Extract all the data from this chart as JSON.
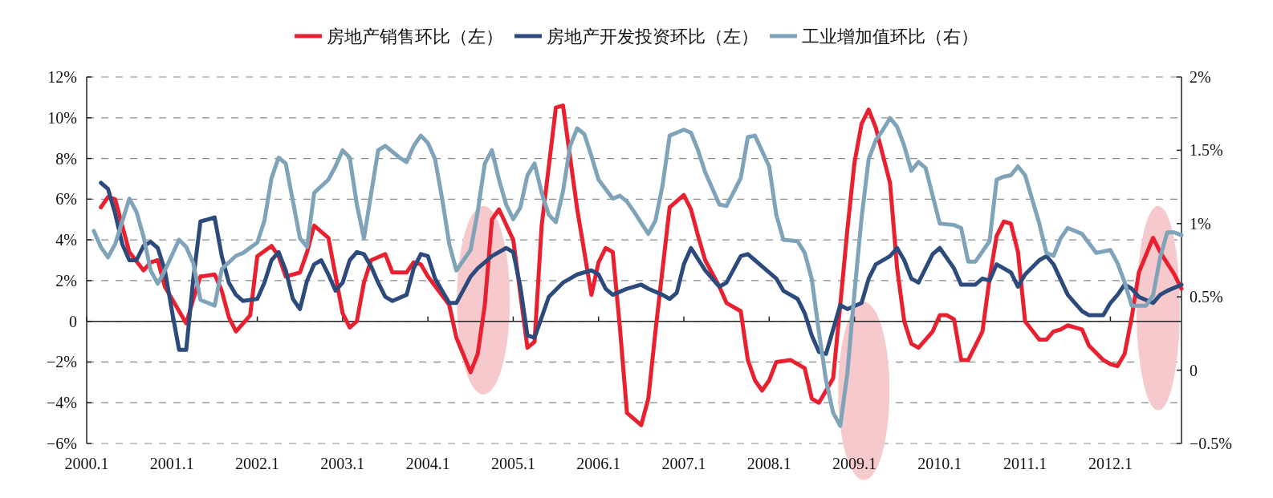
{
  "chart_data": {
    "type": "line",
    "legend": "top",
    "grid": "y",
    "marker": "none",
    "line_style": "solid",
    "xlim": [
      "2000-01",
      "2012-11"
    ],
    "xticks": [
      {
        "value": "2000-01",
        "label": "2000.1"
      },
      {
        "value": "2001-01",
        "label": "2001.1"
      },
      {
        "value": "2002-01",
        "label": "2002.1"
      },
      {
        "value": "2003-01",
        "label": "2003.1"
      },
      {
        "value": "2004-01",
        "label": "2004.1"
      },
      {
        "value": "2005-01",
        "label": "2005.1"
      },
      {
        "value": "2006-01",
        "label": "2006.1"
      },
      {
        "value": "2007-01",
        "label": "2007.1"
      },
      {
        "value": "2008-01",
        "label": "2008.1"
      },
      {
        "value": "2009-01",
        "label": "2009.1"
      },
      {
        "value": "2010-01",
        "label": "2010.1"
      },
      {
        "value": "2011-01",
        "label": "2011.1"
      },
      {
        "value": "2012-01",
        "label": "2012.1"
      }
    ],
    "ylim": [
      -6,
      12
    ],
    "yticks": [
      {
        "value": -6,
        "label": "−6%"
      },
      {
        "value": -4,
        "label": "−4%"
      },
      {
        "value": -2,
        "label": "−2%"
      },
      0,
      {
        "value": 2,
        "label": "2%"
      },
      {
        "value": 4,
        "label": "4%"
      },
      {
        "value": 6,
        "label": "6%"
      },
      {
        "value": 8,
        "label": "8%"
      },
      {
        "value": 10,
        "label": "10%"
      },
      {
        "value": 12,
        "label": "12%"
      }
    ],
    "y2lim": [
      -0.5,
      2
    ],
    "y2ticks": [
      {
        "value": -0.5,
        "label": "−0.5%"
      },
      0,
      {
        "value": 0.5,
        "label": "0.5%"
      },
      {
        "value": 1,
        "label": "1%"
      },
      {
        "value": 1.5,
        "label": "1.5%"
      },
      {
        "value": 2,
        "label": "2%"
      }
    ],
    "series": [
      {
        "name": "房地产销售环比（左）",
        "color": "#e8202f",
        "x": [
          "2000-03",
          "2000-04",
          "2000-05",
          "2000-07",
          "2000-09",
          "2000-10",
          "2000-11",
          "2000-12",
          "2001-02",
          "2001-03",
          "2001-04",
          "2001-05",
          "2001-07",
          "2001-08",
          "2001-09",
          "2001-10",
          "2001-12",
          "2002-01",
          "2002-03",
          "2002-04",
          "2002-05",
          "2002-07",
          "2002-08",
          "2002-09",
          "2002-11",
          "2003-01",
          "2003-02",
          "2003-03",
          "2003-04",
          "2003-05",
          "2003-07",
          "2003-08",
          "2003-10",
          "2003-11",
          "2003-12",
          "2004-01",
          "2004-04",
          "2004-05",
          "2004-07",
          "2004-08",
          "2004-09",
          "2004-10",
          "2004-11",
          "2005-01",
          "2005-03",
          "2005-04",
          "2005-05",
          "2005-07",
          "2005-08",
          "2005-10",
          "2005-12",
          "2006-01",
          "2006-02",
          "2006-03",
          "2006-04",
          "2006-05",
          "2006-07",
          "2006-08",
          "2006-09",
          "2006-11",
          "2007-01",
          "2007-02",
          "2007-03",
          "2007-04",
          "2007-06",
          "2007-07",
          "2007-09",
          "2007-10",
          "2007-11",
          "2007-12",
          "2008-01",
          "2008-02",
          "2008-04",
          "2008-06",
          "2008-07",
          "2008-08",
          "2008-10",
          "2008-11",
          "2008-12",
          "2009-01",
          "2009-02",
          "2009-03",
          "2009-04",
          "2009-06",
          "2009-07",
          "2009-08",
          "2009-09",
          "2009-10",
          "2009-12",
          "2010-01",
          "2010-02",
          "2010-03",
          "2010-04",
          "2010-05",
          "2010-07",
          "2010-08",
          "2010-09",
          "2010-10",
          "2010-11",
          "2010-12",
          "2011-01",
          "2011-03",
          "2011-04",
          "2011-05",
          "2011-06",
          "2011-07",
          "2011-09",
          "2011-10",
          "2011-12",
          "2012-01",
          "2012-02",
          "2012-03",
          "2012-04",
          "2012-05",
          "2012-07",
          "2012-08",
          "2012-10",
          "2012-11"
        ],
        "values": [
          5.6,
          6.1,
          6.0,
          3.4,
          2.5,
          2.9,
          3.0,
          1.7,
          0.5,
          -0.1,
          1.1,
          2.2,
          2.3,
          1.5,
          0.2,
          -0.5,
          0.3,
          3.2,
          3.7,
          3.2,
          2.2,
          2.4,
          3.4,
          4.7,
          4.1,
          0.4,
          -0.3,
          0,
          1.9,
          3.0,
          3.3,
          2.4,
          2.4,
          2.9,
          2.8,
          2.2,
          0.8,
          -0.8,
          -2.5,
          -1.6,
          0.8,
          5.0,
          5.5,
          4.0,
          -1.3,
          -1.0,
          4.7,
          10.5,
          10.6,
          5.5,
          1.3,
          2.9,
          3.6,
          3.4,
          -0.3,
          -4.5,
          -5.1,
          -3.8,
          -0.5,
          5.6,
          6.2,
          5.5,
          4.2,
          3.0,
          1.7,
          0.9,
          0.5,
          -1.9,
          -2.9,
          -3.4,
          -2.9,
          -2.0,
          -1.9,
          -2.3,
          -3.8,
          -4.0,
          -2.8,
          0.8,
          4.5,
          7.8,
          9.7,
          10.4,
          9.5,
          6.8,
          2.6,
          0,
          -1.1,
          -1.3,
          -0.5,
          0.3,
          0.3,
          0.1,
          -1.9,
          -1.9,
          -0.5,
          2.1,
          4.2,
          4.9,
          4.8,
          3.4,
          0,
          -0.9,
          -0.9,
          -0.5,
          -0.4,
          -0.2,
          -0.4,
          -1.2,
          -1.9,
          -2.1,
          -2.2,
          -1.6,
          0.2,
          2.4,
          4.1,
          3.4,
          2.3,
          1.6
        ]
      },
      {
        "name": "房地产开发投资环比（左）",
        "color": "#2c4a7c",
        "x": [
          "2000-03",
          "2000-04",
          "2000-05",
          "2000-06",
          "2000-07",
          "2000-08",
          "2000-09",
          "2000-10",
          "2000-11",
          "2000-12",
          "2001-01",
          "2001-02",
          "2001-03",
          "2001-04",
          "2001-05",
          "2001-07",
          "2001-08",
          "2001-09",
          "2001-10",
          "2001-11",
          "2002-01",
          "2002-02",
          "2002-03",
          "2002-04",
          "2002-05",
          "2002-06",
          "2002-07",
          "2002-08",
          "2002-09",
          "2002-10",
          "2002-11",
          "2002-12",
          "2003-01",
          "2003-02",
          "2003-03",
          "2003-04",
          "2003-05",
          "2003-06",
          "2003-07",
          "2003-08",
          "2003-10",
          "2003-11",
          "2003-12",
          "2004-01",
          "2004-02",
          "2004-04",
          "2004-05",
          "2004-07",
          "2004-08",
          "2004-09",
          "2004-10",
          "2004-12",
          "2005-01",
          "2005-02",
          "2005-03",
          "2005-04",
          "2005-06",
          "2005-08",
          "2005-09",
          "2005-10",
          "2005-12",
          "2006-01",
          "2006-02",
          "2006-03",
          "2006-05",
          "2006-07",
          "2006-08",
          "2006-10",
          "2006-11",
          "2006-12",
          "2007-01",
          "2007-02",
          "2007-04",
          "2007-06",
          "2007-07",
          "2007-09",
          "2007-10",
          "2007-11",
          "2007-12",
          "2008-02",
          "2008-03",
          "2008-05",
          "2008-06",
          "2008-07",
          "2008-08",
          "2008-09",
          "2008-10",
          "2008-11",
          "2008-12",
          "2009-02",
          "2009-03",
          "2009-04",
          "2009-06",
          "2009-07",
          "2009-08",
          "2009-09",
          "2009-10",
          "2009-12",
          "2010-01",
          "2010-03",
          "2010-04",
          "2010-06",
          "2010-07",
          "2010-08",
          "2010-09",
          "2010-11",
          "2010-12",
          "2011-01",
          "2011-03",
          "2011-04",
          "2011-05",
          "2011-07",
          "2011-08",
          "2011-09",
          "2011-10",
          "2011-12",
          "2012-01",
          "2012-02",
          "2012-03",
          "2012-04",
          "2012-05",
          "2012-07",
          "2012-08",
          "2012-09",
          "2012-11"
        ],
        "values": [
          6.8,
          6.5,
          5.3,
          3.8,
          3.0,
          3.0,
          3.7,
          3.9,
          3.6,
          2.5,
          0.5,
          -1.4,
          -1.4,
          2.1,
          4.9,
          5.1,
          3.2,
          1.9,
          1.3,
          1.0,
          1.1,
          1.9,
          3.0,
          3.4,
          2.5,
          1.1,
          0.6,
          2.0,
          2.8,
          3.0,
          2.3,
          1.5,
          1.9,
          3.0,
          3.4,
          3.3,
          2.7,
          1.9,
          1.2,
          1.0,
          1.3,
          2.6,
          3.3,
          3.2,
          2.1,
          0.9,
          0.9,
          2.2,
          2.6,
          2.9,
          3.2,
          3.6,
          3.4,
          1.7,
          -0.7,
          -0.8,
          1.2,
          1.9,
          2.1,
          2.3,
          2.5,
          2.3,
          1.6,
          1.3,
          1.6,
          1.8,
          1.6,
          1.3,
          1.1,
          1.4,
          2.8,
          3.6,
          2.5,
          1.7,
          1.9,
          3.2,
          3.3,
          3.0,
          2.7,
          2.1,
          1.5,
          1.1,
          0.4,
          -0.7,
          -1.5,
          -1.6,
          -0.4,
          0.8,
          0.6,
          0.9,
          2.1,
          2.8,
          3.2,
          3.6,
          3.0,
          2.1,
          1.9,
          3.3,
          3.6,
          2.6,
          1.8,
          1.8,
          2.1,
          2.0,
          2.8,
          2.4,
          1.7,
          2.3,
          3.0,
          3.2,
          2.8,
          1.3,
          0.9,
          0.5,
          0.3,
          0.3,
          0.9,
          1.3,
          1.8,
          1.6,
          1.2,
          0.9,
          1.3,
          1.5,
          1.8
        ]
      },
      {
        "name": "工业增加值环比（右）",
        "color": "#7fa3b8",
        "axis": "y2",
        "x": [
          "2000-02",
          "2000-03",
          "2000-04",
          "2000-05",
          "2000-07",
          "2000-08",
          "2000-09",
          "2000-10",
          "2000-11",
          "2000-12",
          "2001-02",
          "2001-03",
          "2001-04",
          "2001-05",
          "2001-07",
          "2001-08",
          "2001-10",
          "2001-11",
          "2002-01",
          "2002-02",
          "2002-03",
          "2002-04",
          "2002-05",
          "2002-07",
          "2002-08",
          "2002-09",
          "2002-11",
          "2002-12",
          "2003-01",
          "2003-02",
          "2003-03",
          "2003-04",
          "2003-06",
          "2003-07",
          "2003-09",
          "2003-10",
          "2003-11",
          "2003-12",
          "2004-01",
          "2004-02",
          "2004-03",
          "2004-04",
          "2004-05",
          "2004-07",
          "2004-08",
          "2004-09",
          "2004-10",
          "2004-11",
          "2004-12",
          "2005-01",
          "2005-02",
          "2005-03",
          "2005-04",
          "2005-05",
          "2005-06",
          "2005-07",
          "2005-08",
          "2005-09",
          "2005-10",
          "2005-11",
          "2005-12",
          "2006-01",
          "2006-03",
          "2006-04",
          "2006-05",
          "2006-06",
          "2006-08",
          "2006-09",
          "2006-10",
          "2006-11",
          "2007-01",
          "2007-02",
          "2007-03",
          "2007-04",
          "2007-06",
          "2007-07",
          "2007-09",
          "2007-10",
          "2007-11",
          "2008-01",
          "2008-02",
          "2008-03",
          "2008-05",
          "2008-06",
          "2008-07",
          "2008-08",
          "2008-09",
          "2008-10",
          "2008-11",
          "2008-12",
          "2009-01",
          "2009-02",
          "2009-03",
          "2009-04",
          "2009-05",
          "2009-06",
          "2009-07",
          "2009-08",
          "2009-09",
          "2009-10",
          "2009-11",
          "2010-01",
          "2010-03",
          "2010-04",
          "2010-05",
          "2010-06",
          "2010-08",
          "2010-09",
          "2010-10",
          "2010-11",
          "2010-12",
          "2011-01",
          "2011-03",
          "2011-04",
          "2011-05",
          "2011-06",
          "2011-07",
          "2011-09",
          "2011-11",
          "2012-01",
          "2012-02",
          "2012-03",
          "2012-04",
          "2012-06",
          "2012-07",
          "2012-08",
          "2012-09",
          "2012-10",
          "2012-11"
        ],
        "values": [
          0.95,
          0.84,
          0.77,
          0.86,
          1.17,
          1.08,
          0.91,
          0.68,
          0.59,
          0.68,
          0.89,
          0.84,
          0.73,
          0.48,
          0.44,
          0.69,
          0.78,
          0.8,
          0.87,
          1.02,
          1.31,
          1.45,
          1.41,
          0.9,
          0.84,
          1.21,
          1.3,
          1.39,
          1.5,
          1.45,
          1.13,
          0.9,
          1.5,
          1.53,
          1.45,
          1.42,
          1.53,
          1.6,
          1.55,
          1.44,
          1.17,
          0.86,
          0.68,
          0.82,
          1.08,
          1.41,
          1.5,
          1.3,
          1.13,
          1.03,
          1.11,
          1.33,
          1.41,
          1.21,
          1.06,
          1.01,
          1.22,
          1.53,
          1.65,
          1.61,
          1.46,
          1.3,
          1.17,
          1.19,
          1.15,
          1.08,
          0.93,
          1.02,
          1.26,
          1.6,
          1.64,
          1.62,
          1.5,
          1.35,
          1.13,
          1.12,
          1.31,
          1.59,
          1.6,
          1.39,
          1.06,
          0.89,
          0.88,
          0.8,
          0.62,
          0.26,
          -0.07,
          -0.29,
          -0.38,
          -0.02,
          0.53,
          1.04,
          1.44,
          1.57,
          1.64,
          1.72,
          1.66,
          1.53,
          1.36,
          1.42,
          1.38,
          1.0,
          0.99,
          0.97,
          0.74,
          0.74,
          0.88,
          1.3,
          1.32,
          1.33,
          1.39,
          1.33,
          1.0,
          0.8,
          0.78,
          0.9,
          0.97,
          0.93,
          0.8,
          0.82,
          0.73,
          0.6,
          0.44,
          0.44,
          0.51,
          0.77,
          0.94,
          0.94,
          0.92
        ]
      }
    ]
  }
}
